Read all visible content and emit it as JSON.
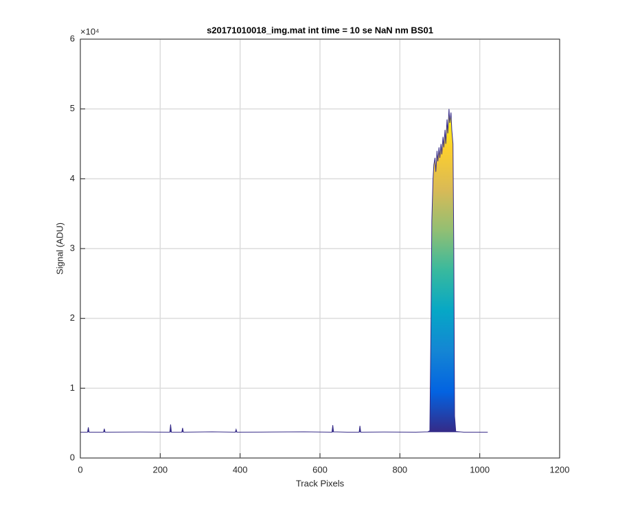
{
  "chart_data": {
    "type": "area",
    "title": "s20171010018_img.mat int time = 10 se  NaN nm BS01",
    "x_label": "Track Pixels",
    "y_label": "Signal (ADU)",
    "y_exponent_label": "×10⁴",
    "x": [
      0,
      18,
      20,
      22,
      58,
      60,
      62,
      150,
      224,
      226,
      228,
      254,
      256,
      258,
      330,
      388,
      390,
      392,
      480,
      560,
      630,
      632,
      634,
      668,
      698,
      700,
      702,
      760,
      840,
      870,
      875,
      878,
      880,
      883,
      885,
      888,
      890,
      893,
      895,
      898,
      900,
      903,
      905,
      908,
      910,
      913,
      915,
      918,
      920,
      923,
      925,
      928,
      930,
      933,
      935,
      937,
      940,
      960,
      1020
    ],
    "series": [
      {
        "name": "Signal",
        "values": [
          3700,
          3700,
          4400,
          3700,
          3700,
          4200,
          3700,
          3720,
          3700,
          4800,
          3700,
          3700,
          4300,
          3700,
          3750,
          3700,
          4100,
          3700,
          3720,
          3750,
          3700,
          4700,
          3750,
          3700,
          3700,
          4600,
          3700,
          3720,
          3700,
          3750,
          3900,
          20000,
          34000,
          40000,
          42000,
          43000,
          41000,
          44000,
          42500,
          44500,
          43000,
          45000,
          43500,
          46000,
          44500,
          47000,
          45000,
          48500,
          46500,
          50000,
          48000,
          49500,
          47000,
          45000,
          30000,
          6000,
          3800,
          3700,
          3700
        ]
      }
    ],
    "colormap": [
      "#352a87",
      "#0363e1",
      "#1485d4",
      "#06a7c6",
      "#38b99e",
      "#92bf73",
      "#d9ba56",
      "#fcce2e",
      "#f9fb0e"
    ],
    "xlim": [
      0,
      1200
    ],
    "xticks": [
      0,
      200,
      400,
      600,
      800,
      1000,
      1200
    ],
    "ylim": [
      0,
      60000
    ],
    "yticks": [
      {
        "value": 0,
        "label": "0"
      },
      {
        "value": 10000,
        "label": "1"
      },
      {
        "value": 20000,
        "label": "2"
      },
      {
        "value": 30000,
        "label": "3"
      },
      {
        "value": 40000,
        "label": "4"
      },
      {
        "value": 50000,
        "label": "5"
      },
      {
        "value": 60000,
        "label": "6"
      }
    ],
    "grid": true
  }
}
